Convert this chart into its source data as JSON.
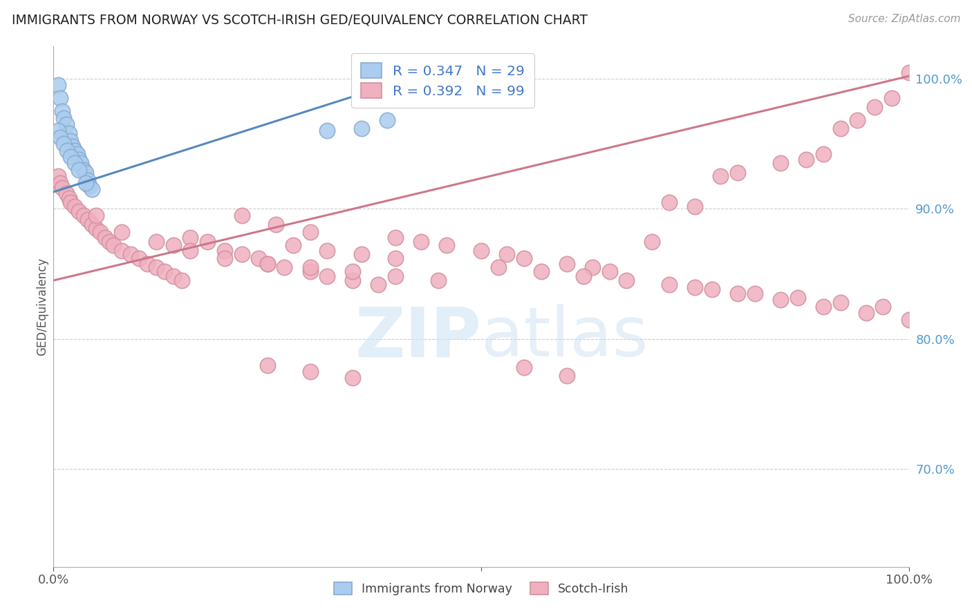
{
  "title": "IMMIGRANTS FROM NORWAY VS SCOTCH-IRISH GED/EQUIVALENCY CORRELATION CHART",
  "source": "Source: ZipAtlas.com",
  "ylabel": "GED/Equivalency",
  "xlim": [
    0,
    1.0
  ],
  "ylim": [
    0.625,
    1.025
  ],
  "ytick_right_labels": [
    "70.0%",
    "80.0%",
    "90.0%",
    "100.0%"
  ],
  "ytick_right_values": [
    0.7,
    0.8,
    0.9,
    1.0
  ],
  "background_color": "#ffffff",
  "norway_color": "#aaccee",
  "scotch_color": "#f0b0c0",
  "norway_edge": "#88aad0",
  "scotch_edge": "#d090a0",
  "norway_R": 0.347,
  "norway_N": 29,
  "scotch_R": 0.392,
  "scotch_N": 99,
  "norway_line_color": "#5588bb",
  "scotch_line_color": "#cc7788",
  "norway_line_x": [
    0.0,
    0.425
  ],
  "norway_line_y": [
    0.913,
    1.002
  ],
  "scotch_line_x": [
    0.0,
    1.0
  ],
  "scotch_line_y": [
    0.845,
    1.002
  ],
  "norway_x": [
    0.005,
    0.008,
    0.01,
    0.012,
    0.015,
    0.018,
    0.02,
    0.022,
    0.025,
    0.028,
    0.03,
    0.032,
    0.035,
    0.038,
    0.04,
    0.042,
    0.045,
    0.005,
    0.008,
    0.012,
    0.016,
    0.02,
    0.025,
    0.03,
    0.038,
    0.32,
    0.36,
    0.39,
    0.42
  ],
  "norway_y": [
    0.995,
    0.985,
    0.975,
    0.97,
    0.965,
    0.958,
    0.952,
    0.948,
    0.945,
    0.942,
    0.938,
    0.935,
    0.93,
    0.928,
    0.922,
    0.918,
    0.915,
    0.96,
    0.955,
    0.95,
    0.945,
    0.94,
    0.935,
    0.93,
    0.92,
    0.96,
    0.962,
    0.968,
    0.998
  ],
  "scotch_x": [
    0.005,
    0.008,
    0.01,
    0.015,
    0.018,
    0.02,
    0.025,
    0.03,
    0.035,
    0.04,
    0.045,
    0.05,
    0.055,
    0.06,
    0.065,
    0.07,
    0.08,
    0.09,
    0.1,
    0.11,
    0.12,
    0.13,
    0.14,
    0.15,
    0.16,
    0.18,
    0.2,
    0.22,
    0.24,
    0.25,
    0.27,
    0.3,
    0.32,
    0.35,
    0.38,
    0.4,
    0.43,
    0.46,
    0.5,
    0.53,
    0.55,
    0.6,
    0.63,
    0.65,
    0.7,
    0.72,
    0.75,
    0.78,
    0.8,
    0.85,
    0.88,
    0.9,
    0.92,
    0.94,
    0.96,
    0.98,
    1.0,
    0.05,
    0.08,
    0.12,
    0.14,
    0.16,
    0.2,
    0.25,
    0.3,
    0.35,
    0.4,
    0.45,
    0.28,
    0.32,
    0.36,
    0.4,
    0.22,
    0.26,
    0.3,
    0.52,
    0.57,
    0.62,
    0.67,
    0.72,
    0.77,
    0.82,
    0.87,
    0.92,
    0.97,
    0.25,
    0.3,
    0.35,
    0.55,
    0.6,
    0.75,
    0.8,
    0.85,
    0.9,
    0.95,
    1.0
  ],
  "scotch_y": [
    0.925,
    0.92,
    0.916,
    0.912,
    0.908,
    0.905,
    0.902,
    0.898,
    0.895,
    0.892,
    0.888,
    0.885,
    0.882,
    0.878,
    0.875,
    0.872,
    0.868,
    0.865,
    0.862,
    0.858,
    0.855,
    0.852,
    0.848,
    0.845,
    0.878,
    0.875,
    0.868,
    0.865,
    0.862,
    0.858,
    0.855,
    0.852,
    0.848,
    0.845,
    0.842,
    0.878,
    0.875,
    0.872,
    0.868,
    0.865,
    0.862,
    0.858,
    0.855,
    0.852,
    0.875,
    0.905,
    0.902,
    0.925,
    0.928,
    0.935,
    0.938,
    0.942,
    0.962,
    0.968,
    0.978,
    0.985,
    1.005,
    0.895,
    0.882,
    0.875,
    0.872,
    0.868,
    0.862,
    0.858,
    0.855,
    0.852,
    0.848,
    0.845,
    0.872,
    0.868,
    0.865,
    0.862,
    0.895,
    0.888,
    0.882,
    0.855,
    0.852,
    0.848,
    0.845,
    0.842,
    0.838,
    0.835,
    0.832,
    0.828,
    0.825,
    0.78,
    0.775,
    0.77,
    0.778,
    0.772,
    0.84,
    0.835,
    0.83,
    0.825,
    0.82,
    0.815
  ]
}
